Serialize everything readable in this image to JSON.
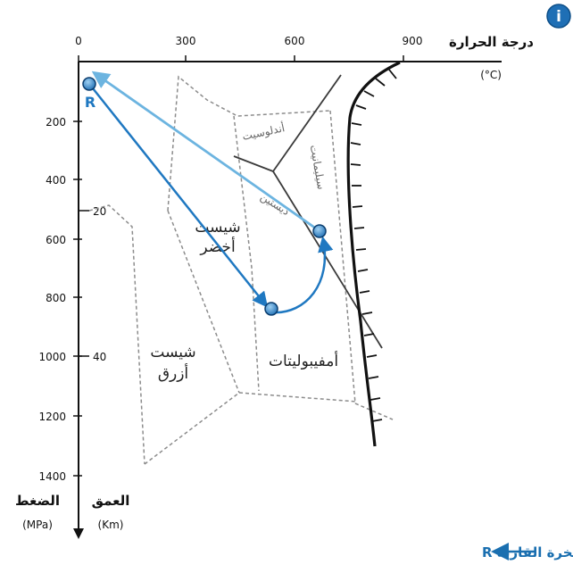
{
  "info_badge": {
    "glyph": "i",
    "color": "#1f6fb5"
  },
  "axes": {
    "temperature": {
      "title": "درجة الحرارة",
      "unit": "(°C)",
      "ticks": [
        "0",
        "300",
        "600",
        "900"
      ]
    },
    "pressure": {
      "title": "الضغط",
      "unit": "(MPa)",
      "ticks": [
        "200",
        "400",
        "600",
        "800",
        "1000",
        "1200",
        "1400"
      ]
    },
    "depth": {
      "title": "العمق",
      "unit": "(Km)",
      "ticks": [
        "20",
        "40"
      ]
    }
  },
  "facies": {
    "green_schist_line1": "شيست",
    "green_schist_line2": "أخضر",
    "blue_schist_line1": "شيست",
    "blue_schist_line2": "أزرق",
    "amphibolite": "أمفيبوليتات",
    "andalusite": "أندلوسيت",
    "sillimanite": "سيليمانيت",
    "kyanite": "ديستين"
  },
  "rock_label": "R",
  "legend": {
    "text": "المسار الدينامي الحراري (P.T) لصخرة القارية R",
    "color": "#1a6fb0"
  },
  "colors": {
    "path_dark": "#1f78c1",
    "path_light": "#6cb4e0",
    "dot_fill": "#2a7fc8",
    "dashed": "#8c8c8c",
    "axis": "#111111"
  }
}
